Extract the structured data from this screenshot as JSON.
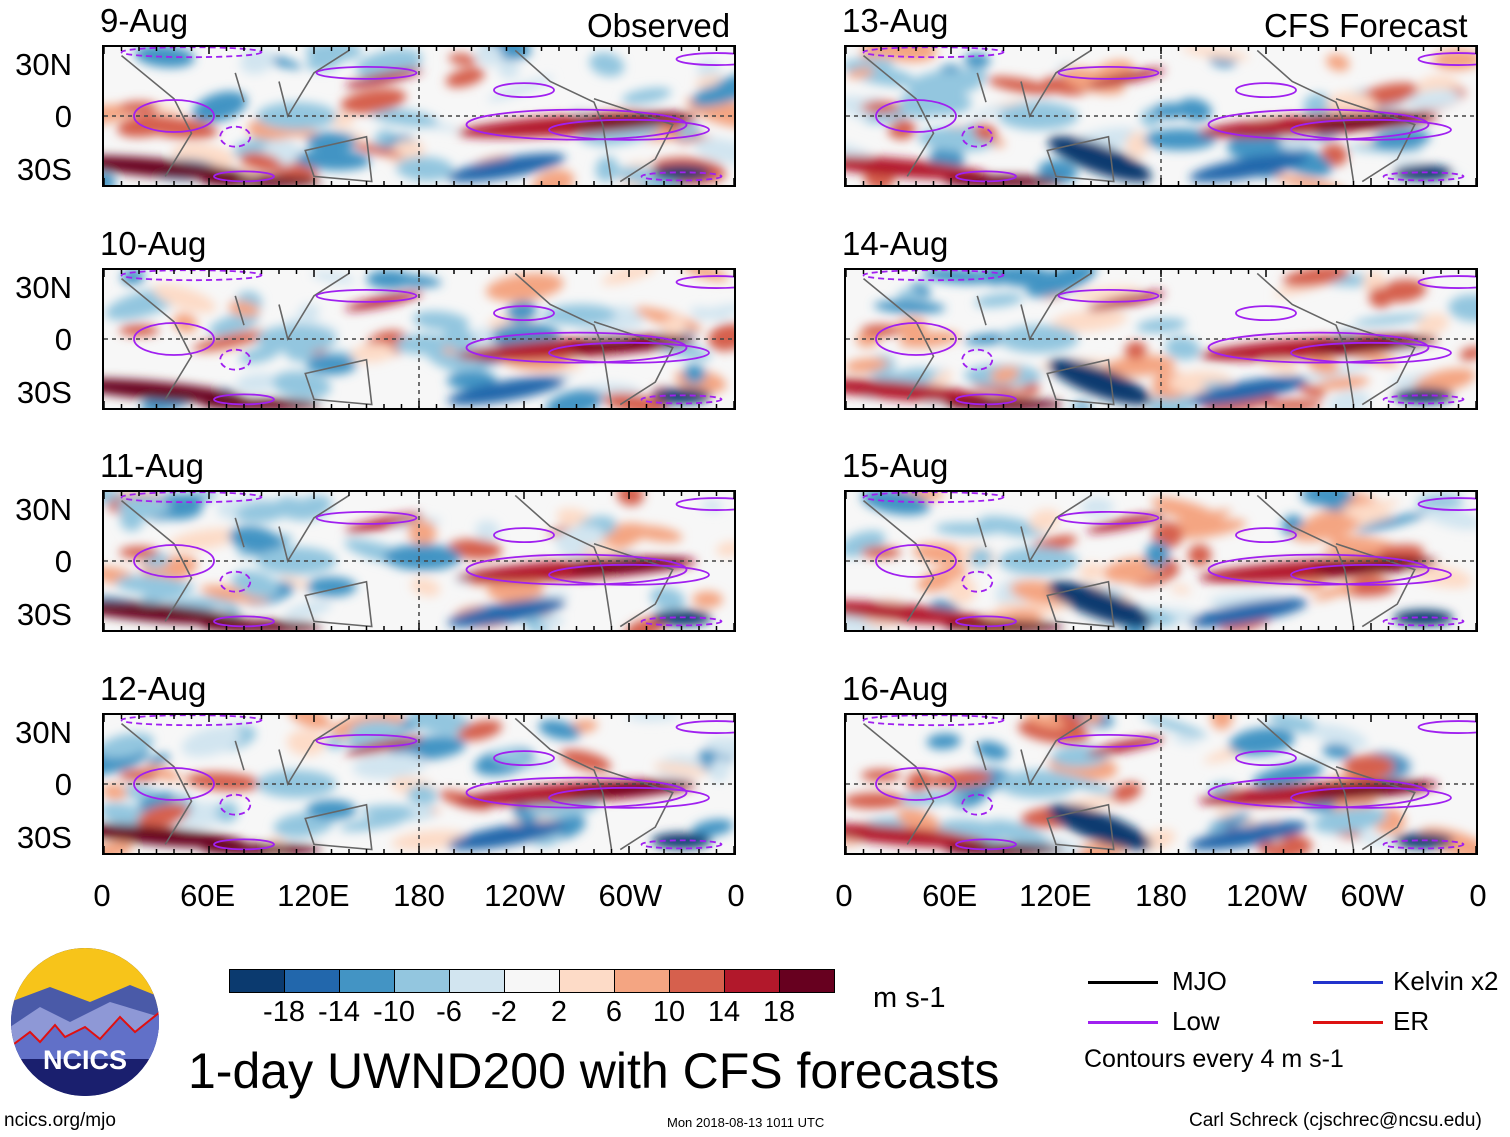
{
  "header": {
    "observed_label": "Observed",
    "forecast_label": "CFS Forecast"
  },
  "panels": [
    {
      "date": "9-Aug",
      "group": "observed"
    },
    {
      "date": "10-Aug",
      "group": "observed"
    },
    {
      "date": "11-Aug",
      "group": "observed"
    },
    {
      "date": "12-Aug",
      "group": "observed"
    },
    {
      "date": "13-Aug",
      "group": "forecast"
    },
    {
      "date": "14-Aug",
      "group": "forecast"
    },
    {
      "date": "15-Aug",
      "group": "forecast"
    },
    {
      "date": "16-Aug",
      "group": "forecast"
    }
  ],
  "chart_data": {
    "type": "heatmap",
    "title": "1-day UWND200 with CFS forecasts",
    "variable": "200 hPa zonal wind",
    "units": "m s-1",
    "lat_ticks": [
      "30N",
      "0",
      "30S"
    ],
    "lon_ticks": [
      "0",
      "60E",
      "120E",
      "180",
      "120W",
      "60W",
      "0"
    ],
    "lat_range": [
      -40,
      40
    ],
    "lon_range": [
      0,
      360
    ],
    "colorbar": {
      "ticks": [
        "-18",
        "-14",
        "-10",
        "-6",
        "-2",
        "2",
        "6",
        "10",
        "14",
        "18"
      ],
      "colors": [
        "#0b3a6f",
        "#2267ac",
        "#4394c4",
        "#93c6df",
        "#d2e5f0",
        "#f7f7f7",
        "#fddbc7",
        "#f4a582",
        "#d6604d",
        "#b2182b",
        "#67001f"
      ]
    },
    "contour_legend": [
      {
        "label": "MJO",
        "color": "#000000"
      },
      {
        "label": "Kelvin x2",
        "color": "#2233cc"
      },
      {
        "label": "Low",
        "color": "#a020f0"
      },
      {
        "label": "ER",
        "color": "#dd1111"
      }
    ],
    "contour_note": "Contours every 4 m s-1"
  },
  "logo": {
    "text": "NCICS"
  },
  "footer": {
    "url": "ncics.org/mjo",
    "timestamp": "Mon 2018-08-13 1011 UTC",
    "author": "Carl Schreck (cjschrec@ncsu.edu)"
  }
}
